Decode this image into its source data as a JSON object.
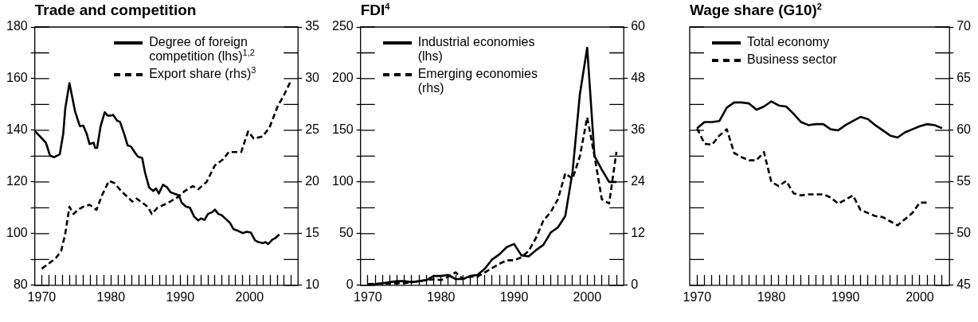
{
  "chart_data": [
    {
      "type": "line",
      "title": "Trade and competition",
      "legend": "top right",
      "grid": false,
      "xlim": [
        1969,
        2007
      ],
      "xticks": [
        1970,
        {
          "value": 1971,
          "label": null
        },
        {
          "value": 1972,
          "label": null
        },
        {
          "value": 1973,
          "label": null
        },
        {
          "value": 1974,
          "label": null
        },
        {
          "value": 1975,
          "label": null
        },
        {
          "value": 1976,
          "label": null
        },
        {
          "value": 1977,
          "label": null
        },
        {
          "value": 1978,
          "label": null
        },
        {
          "value": 1979,
          "label": null
        },
        1980,
        {
          "value": 1981,
          "label": null
        },
        {
          "value": 1982,
          "label": null
        },
        {
          "value": 1983,
          "label": null
        },
        {
          "value": 1984,
          "label": null
        },
        {
          "value": 1985,
          "label": null
        },
        {
          "value": 1986,
          "label": null
        },
        {
          "value": 1987,
          "label": null
        },
        {
          "value": 1988,
          "label": null
        },
        {
          "value": 1989,
          "label": null
        },
        1990,
        {
          "value": 1991,
          "label": null
        },
        {
          "value": 1992,
          "label": null
        },
        {
          "value": 1993,
          "label": null
        },
        {
          "value": 1994,
          "label": null
        },
        {
          "value": 1995,
          "label": null
        },
        {
          "value": 1996,
          "label": null
        },
        {
          "value": 1997,
          "label": null
        },
        {
          "value": 1998,
          "label": null
        },
        {
          "value": 1999,
          "label": null
        },
        2000,
        {
          "value": 2001,
          "label": null
        },
        {
          "value": 2002,
          "label": null
        },
        {
          "value": 2003,
          "label": null
        },
        {
          "value": 2004,
          "label": null
        },
        {
          "value": 2005,
          "label": null
        },
        {
          "value": 2006,
          "label": null
        }
      ],
      "ylim": [
        80,
        180
      ],
      "yticks": [
        80,
        {
          "value": 90,
          "label": null
        },
        100,
        {
          "value": 110,
          "label": null
        },
        120,
        {
          "value": 130,
          "label": null
        },
        140,
        {
          "value": 150,
          "label": null
        },
        160,
        {
          "value": 170,
          "label": null
        },
        180
      ],
      "y2lim": [
        10,
        35
      ],
      "y2ticks": [
        10,
        15,
        20,
        25,
        30,
        35
      ],
      "series": [
        {
          "name": "Degree of foreign competition (lhs)$^{1,2}$",
          "color": "#000000",
          "line_style": "solid",
          "x": [
            1969.0,
            1970.6,
            1971.2,
            1971.8,
            1972.6,
            1973.1,
            1973.4,
            1974.0,
            1974.8,
            1975.5,
            1976.0,
            1976.5,
            1976.9,
            1977.5,
            1977.7,
            1978.0,
            1978.5,
            1979.1,
            1979.5,
            1980.0,
            1980.3,
            1980.9,
            1981.3,
            1981.9,
            1982.4,
            1982.9,
            1983.5,
            1983.9,
            1984.5,
            1984.9,
            1985.5,
            1986.1,
            1986.5,
            1986.9,
            1987.5,
            1988.1,
            1988.6,
            1989.1,
            1989.8,
            1990.2,
            1990.8,
            1991.4,
            1992.0,
            1992.6,
            1993.0,
            1993.5,
            1994.0,
            1994.6,
            1995.0,
            1995.5,
            1996.0,
            1996.6,
            1997.2,
            1997.7,
            1998.4,
            1999.0,
            1999.6,
            2000.2,
            2000.8,
            2001.3,
            2001.9,
            2002.3,
            2002.7,
            2003.3,
            2003.7,
            2004.3
          ],
          "values": [
            139.8,
            135.2,
            130.2,
            129.6,
            130.7,
            138.6,
            148.5,
            158.3,
            147.5,
            141.6,
            141.8,
            138.6,
            134.7,
            135.2,
            133.2,
            133.2,
            141.6,
            147.0,
            145.7,
            145.7,
            146.0,
            143.7,
            143.3,
            138.6,
            134.2,
            133.7,
            131.2,
            129.8,
            129.3,
            123.8,
            117.9,
            116.5,
            117.5,
            115.5,
            118.9,
            117.9,
            116.0,
            115.5,
            114.8,
            112.0,
            110.5,
            110.0,
            106.6,
            105.1,
            105.9,
            105.3,
            107.6,
            108.3,
            109.3,
            107.6,
            107.1,
            105.6,
            104.1,
            101.7,
            101.0,
            100.2,
            100.7,
            100.4,
            97.4,
            96.7,
            96.3,
            96.7,
            96.0,
            97.7,
            98.2,
            99.7
          ]
        },
        {
          "name": "Export share (rhs)$^{3}$",
          "color": "#000000",
          "line_style": "dashed",
          "axis": "y2",
          "x": [
            1970.0,
            1970.8,
            1972.0,
            1972.8,
            1973.4,
            1974.0,
            1974.6,
            1975.2,
            1976.0,
            1976.9,
            1977.9,
            1978.7,
            1979.7,
            1980.5,
            1981.5,
            1983.1,
            1983.7,
            1985.3,
            1985.9,
            1986.7,
            1988.3,
            1989.8,
            1990.6,
            1991.8,
            1992.6,
            1993.8,
            1995.0,
            1996.2,
            1997.0,
            1997.8,
            1998.8,
            1999.8,
            2000.6,
            2001.9,
            2002.9,
            2004.1,
            2004.9,
            2005.9
          ],
          "values": [
            11.6,
            12.0,
            12.6,
            13.3,
            15.0,
            17.6,
            16.9,
            17.3,
            17.6,
            17.8,
            17.3,
            18.7,
            20.1,
            19.9,
            19.1,
            18.1,
            18.4,
            17.6,
            16.9,
            17.5,
            18.0,
            18.6,
            19.1,
            19.6,
            19.3,
            20.0,
            21.6,
            22.2,
            22.9,
            22.9,
            22.9,
            24.9,
            24.2,
            24.4,
            25.3,
            27.4,
            28.3,
            29.7
          ]
        }
      ]
    },
    {
      "type": "line",
      "title": "FDI$^{4}$",
      "legend": "top left",
      "grid": false,
      "xlim": [
        1969,
        2005
      ],
      "xticks": [
        1970,
        {
          "value": 1971,
          "label": null
        },
        {
          "value": 1972,
          "label": null
        },
        {
          "value": 1973,
          "label": null
        },
        {
          "value": 1974,
          "label": null
        },
        {
          "value": 1975,
          "label": null
        },
        {
          "value": 1976,
          "label": null
        },
        {
          "value": 1977,
          "label": null
        },
        {
          "value": 1978,
          "label": null
        },
        {
          "value": 1979,
          "label": null
        },
        1980,
        {
          "value": 1981,
          "label": null
        },
        {
          "value": 1982,
          "label": null
        },
        {
          "value": 1983,
          "label": null
        },
        {
          "value": 1984,
          "label": null
        },
        {
          "value": 1985,
          "label": null
        },
        {
          "value": 1986,
          "label": null
        },
        {
          "value": 1987,
          "label": null
        },
        {
          "value": 1988,
          "label": null
        },
        {
          "value": 1989,
          "label": null
        },
        1990,
        {
          "value": 1991,
          "label": null
        },
        {
          "value": 1992,
          "label": null
        },
        {
          "value": 1993,
          "label": null
        },
        {
          "value": 1994,
          "label": null
        },
        {
          "value": 1995,
          "label": null
        },
        {
          "value": 1996,
          "label": null
        },
        {
          "value": 1997,
          "label": null
        },
        {
          "value": 1998,
          "label": null
        },
        {
          "value": 1999,
          "label": null
        },
        2000,
        {
          "value": 2001,
          "label": null
        },
        {
          "value": 2002,
          "label": null
        },
        {
          "value": 2003,
          "label": null
        },
        {
          "value": 2004,
          "label": null
        }
      ],
      "ylim": [
        0,
        250
      ],
      "yticks": [
        0,
        {
          "value": 25,
          "label": null
        },
        50,
        {
          "value": 75,
          "label": null
        },
        100,
        {
          "value": 125,
          "label": null
        },
        150,
        {
          "value": 175,
          "label": null
        },
        200,
        {
          "value": 225,
          "label": null
        },
        250
      ],
      "y2lim": [
        0,
        60
      ],
      "y2ticks": [
        0,
        12,
        24,
        36,
        48,
        60
      ],
      "series": [
        {
          "name": "Industrial economies (lhs)",
          "color": "#000000",
          "line_style": "solid",
          "x": [
            1970,
            1971,
            1972,
            1973,
            1974,
            1975,
            1976,
            1977,
            1978,
            1979,
            1980,
            1981,
            1982,
            1983,
            1984,
            1985,
            1986,
            1987,
            1988,
            1989,
            1990,
            1991,
            1992,
            1993,
            1994,
            1995,
            1996,
            1997,
            1998,
            1999,
            2000,
            2001,
            2002,
            2003,
            2004
          ],
          "values": [
            1,
            1,
            2,
            3,
            4,
            4,
            3,
            4,
            5,
            9,
            9,
            10,
            6,
            6,
            9,
            10,
            16,
            25,
            30,
            37,
            40,
            29,
            28,
            34,
            39,
            51,
            56,
            67,
            110,
            185,
            230,
            125,
            112,
            100,
            100
          ]
        },
        {
          "name": "Emerging economies (rhs)",
          "color": "#000000",
          "line_style": "dashed",
          "axis": "y2",
          "x": [
            1970,
            1975,
            1979,
            1980,
            1981,
            1982,
            1983,
            1984,
            1985,
            1986,
            1987,
            1988,
            1989,
            1990,
            1991,
            1992,
            1993,
            1994,
            1995,
            1996,
            1997,
            1998,
            1999,
            2000,
            2001,
            2002,
            2003,
            2004
          ],
          "values": [
            0.3,
            0.5,
            1.4,
            1.2,
            2,
            3,
            1.5,
            2,
            2,
            3,
            4,
            5,
            5.8,
            5.8,
            6.5,
            8,
            11,
            15,
            17,
            20,
            26,
            24.7,
            30,
            39,
            30,
            20,
            19,
            31
          ]
        }
      ]
    },
    {
      "type": "line",
      "title": "Wage share (G10)$^{2}$",
      "legend": "top left",
      "grid": false,
      "xlim": [
        1969,
        2004
      ],
      "xticks": [
        1970,
        {
          "value": 1971,
          "label": null
        },
        {
          "value": 1972,
          "label": null
        },
        {
          "value": 1973,
          "label": null
        },
        {
          "value": 1974,
          "label": null
        },
        {
          "value": 1975,
          "label": null
        },
        {
          "value": 1976,
          "label": null
        },
        {
          "value": 1977,
          "label": null
        },
        {
          "value": 1978,
          "label": null
        },
        {
          "value": 1979,
          "label": null
        },
        1980,
        {
          "value": 1981,
          "label": null
        },
        {
          "value": 1982,
          "label": null
        },
        {
          "value": 1983,
          "label": null
        },
        {
          "value": 1984,
          "label": null
        },
        {
          "value": 1985,
          "label": null
        },
        {
          "value": 1986,
          "label": null
        },
        {
          "value": 1987,
          "label": null
        },
        {
          "value": 1988,
          "label": null
        },
        {
          "value": 1989,
          "label": null
        },
        1990,
        {
          "value": 1991,
          "label": null
        },
        {
          "value": 1992,
          "label": null
        },
        {
          "value": 1993,
          "label": null
        },
        {
          "value": 1994,
          "label": null
        },
        {
          "value": 1995,
          "label": null
        },
        {
          "value": 1996,
          "label": null
        },
        {
          "value": 1997,
          "label": null
        },
        {
          "value": 1998,
          "label": null
        },
        {
          "value": 1999,
          "label": null
        },
        2000,
        {
          "value": 2001,
          "label": null
        },
        {
          "value": 2002,
          "label": null
        },
        {
          "value": 2003,
          "label": null
        }
      ],
      "y2lim": [
        45,
        70
      ],
      "y2ticks": [
        45,
        {
          "value": 47.5,
          "label": null
        },
        50,
        {
          "value": 52.5,
          "label": null
        },
        55,
        {
          "value": 57.5,
          "label": null
        },
        60,
        {
          "value": 62.5,
          "label": null
        },
        65,
        {
          "value": 67.5,
          "label": null
        },
        70
      ],
      "series": [
        {
          "name": "Total economy",
          "color": "#000000",
          "line_style": "solid",
          "axis": "y2",
          "x": [
            1970,
            1971,
            1972,
            1973,
            1974,
            1975,
            1976,
            1977,
            1978,
            1979,
            1980,
            1981,
            1982,
            1983,
            1984,
            1985,
            1986,
            1987,
            1988,
            1989,
            1990,
            1991,
            1992,
            1993,
            1994,
            1995,
            1996,
            1997,
            1998,
            1999,
            2000,
            2001,
            2002,
            2003
          ],
          "values": [
            60.2,
            60.8,
            60.8,
            60.9,
            62.2,
            62.7,
            62.7,
            62.6,
            62.0,
            62.3,
            62.8,
            62.4,
            62.3,
            61.6,
            60.8,
            60.5,
            60.6,
            60.6,
            60.1,
            60.0,
            60.5,
            60.9,
            61.3,
            61.1,
            60.5,
            60.0,
            59.5,
            59.3,
            59.8,
            60.1,
            60.4,
            60.6,
            60.5,
            60.2
          ]
        },
        {
          "name": "Business sector",
          "color": "#000000",
          "line_style": "dashed",
          "axis": "y2",
          "x": [
            1970,
            1971,
            1972,
            1973,
            1974,
            1975,
            1976,
            1977,
            1978,
            1979,
            1980,
            1981,
            1982,
            1983,
            1984,
            1985,
            1986,
            1987,
            1988,
            1989,
            1990,
            1991,
            1992,
            1993,
            1994,
            1995,
            1996,
            1997,
            1998,
            1999,
            2000,
            2001
          ],
          "values": [
            60.2,
            58.7,
            58.6,
            59.5,
            60.1,
            57.8,
            57.4,
            57.1,
            57.1,
            57.9,
            55.0,
            54.6,
            55.1,
            53.9,
            53.7,
            53.8,
            53.8,
            53.8,
            53.5,
            52.9,
            53.3,
            53.7,
            52.3,
            52.0,
            51.7,
            51.6,
            51.2,
            50.8,
            51.4,
            52.0,
            53.0,
            53.0
          ]
        }
      ]
    }
  ]
}
